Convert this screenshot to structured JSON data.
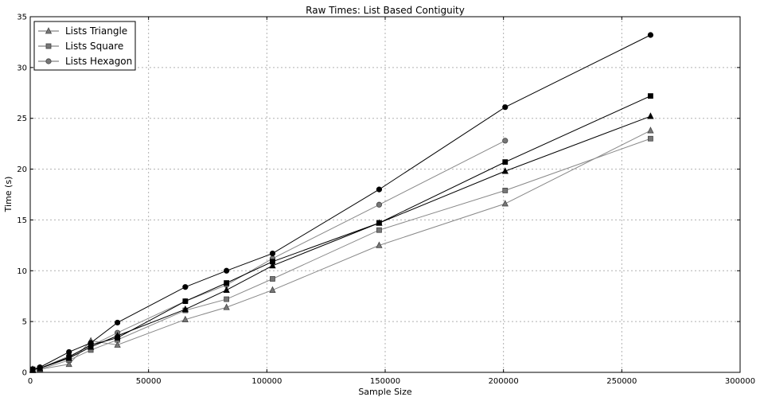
{
  "chart_data": {
    "type": "line",
    "title": "Raw Times: List Based Contiguity",
    "xlabel": "Sample Size",
    "ylabel": "Time (s)",
    "xlim": [
      0,
      300000
    ],
    "ylim": [
      0,
      35
    ],
    "xticks": [
      0,
      50000,
      100000,
      150000,
      200000,
      250000,
      300000
    ],
    "yticks": [
      0,
      5,
      10,
      15,
      20,
      25,
      30,
      35
    ],
    "grid": true,
    "legend_position": "top-left",
    "legend": [
      {
        "label": "Lists Triangle",
        "marker": "triangle",
        "color": "#666666"
      },
      {
        "label": "Lists Square",
        "marker": "square",
        "color": "#666666"
      },
      {
        "label": "Lists Hexagon",
        "marker": "circle",
        "color": "#666666"
      }
    ],
    "series": [
      {
        "marker": "triangle",
        "color": "#888888",
        "marker_fill": "#777777",
        "x": [
          1024,
          4096,
          16384,
          25600,
          36864,
          65536,
          82944,
          102400,
          147456,
          200704,
          262144
        ],
        "y": [
          0.2,
          0.3,
          0.8,
          3.1,
          2.7,
          5.2,
          6.4,
          8.1,
          12.5,
          16.6,
          23.8
        ]
      },
      {
        "marker": "square",
        "color": "#888888",
        "marker_fill": "#777777",
        "x": [
          1024,
          4096,
          16384,
          25600,
          36864,
          65536,
          82944,
          102400,
          147456,
          200704,
          262144
        ],
        "y": [
          0.2,
          0.3,
          1.2,
          2.2,
          3.2,
          6.1,
          7.2,
          9.2,
          14.0,
          17.9,
          23.0
        ]
      },
      {
        "marker": "circle",
        "color": "#888888",
        "marker_fill": "#777777",
        "x": [
          1024,
          4096,
          16384,
          25600,
          36864,
          65536,
          82944,
          102400,
          147456,
          200704
        ],
        "y": [
          0.3,
          0.4,
          1.6,
          2.6,
          3.9,
          7.0,
          8.6,
          11.2,
          16.5,
          22.8
        ]
      },
      {
        "marker": "triangle",
        "color": "#000000",
        "marker_fill": "#000000",
        "x": [
          1024,
          4096,
          16384,
          25600,
          36864,
          65536,
          82944,
          102400,
          147456,
          200704,
          262144
        ],
        "y": [
          0.3,
          0.4,
          1.4,
          2.5,
          3.6,
          6.2,
          8.1,
          10.5,
          14.7,
          19.8,
          25.2
        ]
      },
      {
        "marker": "square",
        "color": "#000000",
        "marker_fill": "#000000",
        "x": [
          1024,
          4096,
          16384,
          25600,
          36864,
          65536,
          82944,
          102400,
          147456,
          200704,
          262144
        ],
        "y": [
          0.3,
          0.4,
          1.5,
          2.7,
          3.4,
          7.0,
          8.8,
          10.9,
          14.7,
          20.7,
          27.2
        ]
      },
      {
        "marker": "circle",
        "color": "#000000",
        "marker_fill": "#000000",
        "x": [
          1024,
          4096,
          16384,
          25600,
          36864,
          65536,
          82944,
          102400,
          147456,
          200704,
          262144
        ],
        "y": [
          0.3,
          0.5,
          2.0,
          2.9,
          4.9,
          8.4,
          10.0,
          11.7,
          18.0,
          26.1,
          33.2
        ]
      }
    ]
  }
}
